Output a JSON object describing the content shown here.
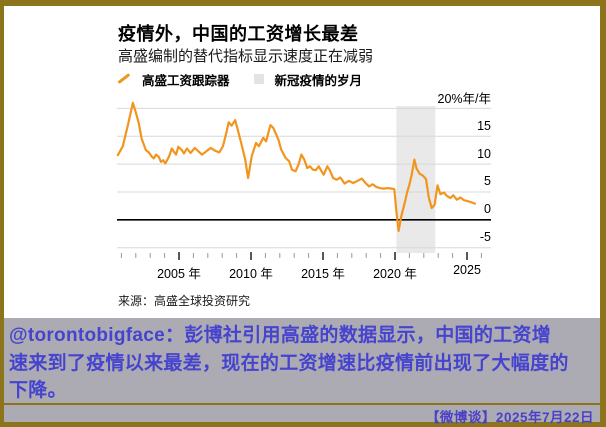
{
  "frame": {
    "border_color": "#8B741C",
    "card_bg": "#FFFFFF",
    "social_bg": "#ACABB3"
  },
  "chart": {
    "title": "疫情外，中国的工资增长最差",
    "subtitle": "高盛编制的替代指标显示速度正在减弱",
    "legend": [
      {
        "label": "高盛工资跟踪器",
        "type": "line",
        "color": "#F2951F"
      },
      {
        "label": "新冠疫情的岁月",
        "type": "band",
        "color": "#E3E3E3"
      }
    ],
    "source": "来源：高盛全球投资研究"
  },
  "chart_data": {
    "type": "line",
    "title": "疫情外，中国的工资增长最差",
    "subtitle": "高盛编制的替代指标显示速度正在减弱",
    "unit": "%年/年",
    "x_range": [
      2000.7,
      2026.7
    ],
    "y_range": [
      -5,
      20
    ],
    "grid": true,
    "zero_line": true,
    "legend_position": "top-left",
    "y_ticks": [
      {
        "v": 20,
        "label": "20%年/年"
      },
      {
        "v": 15,
        "label": "15"
      },
      {
        "v": 10,
        "label": "10"
      },
      {
        "v": 5,
        "label": "5"
      },
      {
        "v": 0,
        "label": "0"
      },
      {
        "v": -5,
        "label": "-5"
      }
    ],
    "x_ticks_major": [
      {
        "x": 2005,
        "label": "2005 年"
      },
      {
        "x": 2010,
        "label": "2010 年"
      },
      {
        "x": 2015,
        "label": "2015 年"
      },
      {
        "x": 2020,
        "label": "2020 年"
      },
      {
        "x": 2025,
        "label": "2025"
      }
    ],
    "x_ticks_minor_years": [
      2001,
      2002,
      2003,
      2004,
      2005,
      2006,
      2007,
      2008,
      2009,
      2010,
      2011,
      2012,
      2013,
      2014,
      2015,
      2016,
      2017,
      2018,
      2019,
      2020,
      2021,
      2022,
      2023,
      2024,
      2025,
      2026
    ],
    "covid_band": {
      "label": "新冠疫情的岁月",
      "from": 2020.1,
      "to": 2022.8,
      "color": "#E9E9E9"
    },
    "series": [
      {
        "name": "高盛工资跟踪器",
        "color": "#F2951F",
        "points": [
          [
            2000.75,
            11.6
          ],
          [
            2001.1,
            13.2
          ],
          [
            2001.45,
            17.0
          ],
          [
            2001.8,
            21.0
          ],
          [
            2002.0,
            19.3
          ],
          [
            2002.2,
            17.4
          ],
          [
            2002.4,
            14.6
          ],
          [
            2002.7,
            12.5
          ],
          [
            2002.9,
            12.1
          ],
          [
            2003.1,
            11.4
          ],
          [
            2003.25,
            11.0
          ],
          [
            2003.4,
            11.7
          ],
          [
            2003.6,
            11.3
          ],
          [
            2003.75,
            10.4
          ],
          [
            2003.9,
            10.7
          ],
          [
            2004.05,
            10.1
          ],
          [
            2004.3,
            11.3
          ],
          [
            2004.5,
            12.8
          ],
          [
            2004.65,
            12.2
          ],
          [
            2004.8,
            11.7
          ],
          [
            2004.95,
            13.1
          ],
          [
            2005.2,
            12.5
          ],
          [
            2005.35,
            11.9
          ],
          [
            2005.55,
            12.8
          ],
          [
            2005.8,
            12.0
          ],
          [
            2006.1,
            12.9
          ],
          [
            2006.35,
            12.3
          ],
          [
            2006.6,
            11.7
          ],
          [
            2006.9,
            12.3
          ],
          [
            2007.2,
            12.9
          ],
          [
            2007.5,
            12.4
          ],
          [
            2007.8,
            12.1
          ],
          [
            2008.05,
            13.2
          ],
          [
            2008.25,
            15.2
          ],
          [
            2008.45,
            17.5
          ],
          [
            2008.65,
            16.9
          ],
          [
            2008.9,
            17.9
          ],
          [
            2009.1,
            16.0
          ],
          [
            2009.35,
            13.5
          ],
          [
            2009.6,
            10.8
          ],
          [
            2009.8,
            7.5
          ],
          [
            2010.05,
            11.4
          ],
          [
            2010.35,
            13.8
          ],
          [
            2010.55,
            13.2
          ],
          [
            2010.85,
            14.7
          ],
          [
            2011.05,
            14.1
          ],
          [
            2011.35,
            17.0
          ],
          [
            2011.55,
            16.5
          ],
          [
            2011.9,
            14.4
          ],
          [
            2012.1,
            12.6
          ],
          [
            2012.4,
            11.1
          ],
          [
            2012.65,
            10.5
          ],
          [
            2012.85,
            9.0
          ],
          [
            2013.1,
            8.7
          ],
          [
            2013.3,
            9.9
          ],
          [
            2013.5,
            11.7
          ],
          [
            2013.7,
            10.8
          ],
          [
            2013.9,
            9.3
          ],
          [
            2014.1,
            9.6
          ],
          [
            2014.3,
            9.0
          ],
          [
            2014.5,
            8.9
          ],
          [
            2014.7,
            9.6
          ],
          [
            2014.9,
            8.7
          ],
          [
            2015.05,
            8.1
          ],
          [
            2015.3,
            9.6
          ],
          [
            2015.45,
            9.0
          ],
          [
            2015.7,
            7.5
          ],
          [
            2015.95,
            7.2
          ],
          [
            2016.2,
            7.6
          ],
          [
            2016.5,
            6.5
          ],
          [
            2016.8,
            7.0
          ],
          [
            2017.1,
            6.6
          ],
          [
            2017.4,
            7.0
          ],
          [
            2017.7,
            7.4
          ],
          [
            2017.95,
            6.6
          ],
          [
            2018.2,
            6.0
          ],
          [
            2018.45,
            6.4
          ],
          [
            2018.7,
            5.9
          ],
          [
            2018.95,
            5.7
          ],
          [
            2019.2,
            5.6
          ],
          [
            2019.5,
            5.7
          ],
          [
            2019.75,
            5.6
          ],
          [
            2019.95,
            5.5
          ],
          [
            2020.1,
            1.5
          ],
          [
            2020.25,
            -2.0
          ],
          [
            2020.45,
            0.8
          ],
          [
            2020.65,
            2.8
          ],
          [
            2020.85,
            5.0
          ],
          [
            2021.0,
            6.3
          ],
          [
            2021.15,
            8.0
          ],
          [
            2021.35,
            10.8
          ],
          [
            2021.5,
            9.2
          ],
          [
            2021.7,
            8.3
          ],
          [
            2021.95,
            7.9
          ],
          [
            2022.15,
            7.3
          ],
          [
            2022.35,
            4.0
          ],
          [
            2022.55,
            2.1
          ],
          [
            2022.75,
            2.7
          ],
          [
            2022.95,
            6.2
          ],
          [
            2023.15,
            4.6
          ],
          [
            2023.4,
            4.9
          ],
          [
            2023.6,
            4.3
          ],
          [
            2023.85,
            3.9
          ],
          [
            2024.05,
            4.4
          ],
          [
            2024.3,
            3.6
          ],
          [
            2024.55,
            4.0
          ],
          [
            2024.8,
            3.5
          ],
          [
            2025.0,
            3.4
          ],
          [
            2025.25,
            3.2
          ],
          [
            2025.55,
            2.9
          ]
        ]
      }
    ]
  },
  "social": {
    "lines": [
      "@torontobigface：彭博社引用高盛的数据显示，中国的工资增",
      "速来到了疫情以来最差，现在的工资增速比疫情前出现了大幅度的",
      "下降。"
    ],
    "footer": "【微博谈】2025年7月22日",
    "text_color": "#4643CE"
  }
}
